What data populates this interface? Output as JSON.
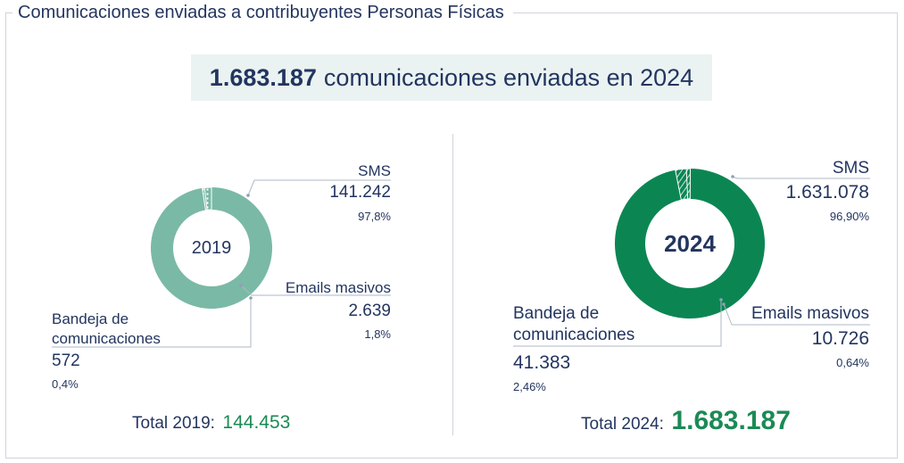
{
  "page_title": "Comunicaciones enviadas a contribuyentes Personas Físicas",
  "headline": {
    "number": "1.683.187",
    "text": "comunicaciones enviadas en 2024"
  },
  "colors": {
    "ring_2019": "#7ab9a6",
    "ring_2024": "#0b8653",
    "text": "#23355f",
    "total_value": "#1b8a55"
  },
  "chart_data": [
    {
      "type": "pie",
      "center_label": "2019",
      "slices": [
        {
          "label": "SMS",
          "value": 141242,
          "value_text": "141.242",
          "pct_text": "97,8%"
        },
        {
          "label": "Emails masivos",
          "value": 2639,
          "value_text": "2.639",
          "pct_text": "1,8%"
        },
        {
          "label": "Bandeja de comunicaciones",
          "value": 572,
          "value_text": "572",
          "pct_text": "0,4%"
        }
      ],
      "total_label": "Total 2019:",
      "total_value": "144.453"
    },
    {
      "type": "pie",
      "center_label": "2024",
      "slices": [
        {
          "label": "SMS",
          "value": 1631078,
          "value_text": "1.631.078",
          "pct_text": "96,90%"
        },
        {
          "label": "Emails masivos",
          "value": 10726,
          "value_text": "10.726",
          "pct_text": "0,64%"
        },
        {
          "label": "Bandeja de comunicaciones",
          "value": 41383,
          "value_text": "41.383",
          "pct_text": "2,46%"
        }
      ],
      "total_label": "Total 2024:",
      "total_value": "1.683.187"
    }
  ]
}
